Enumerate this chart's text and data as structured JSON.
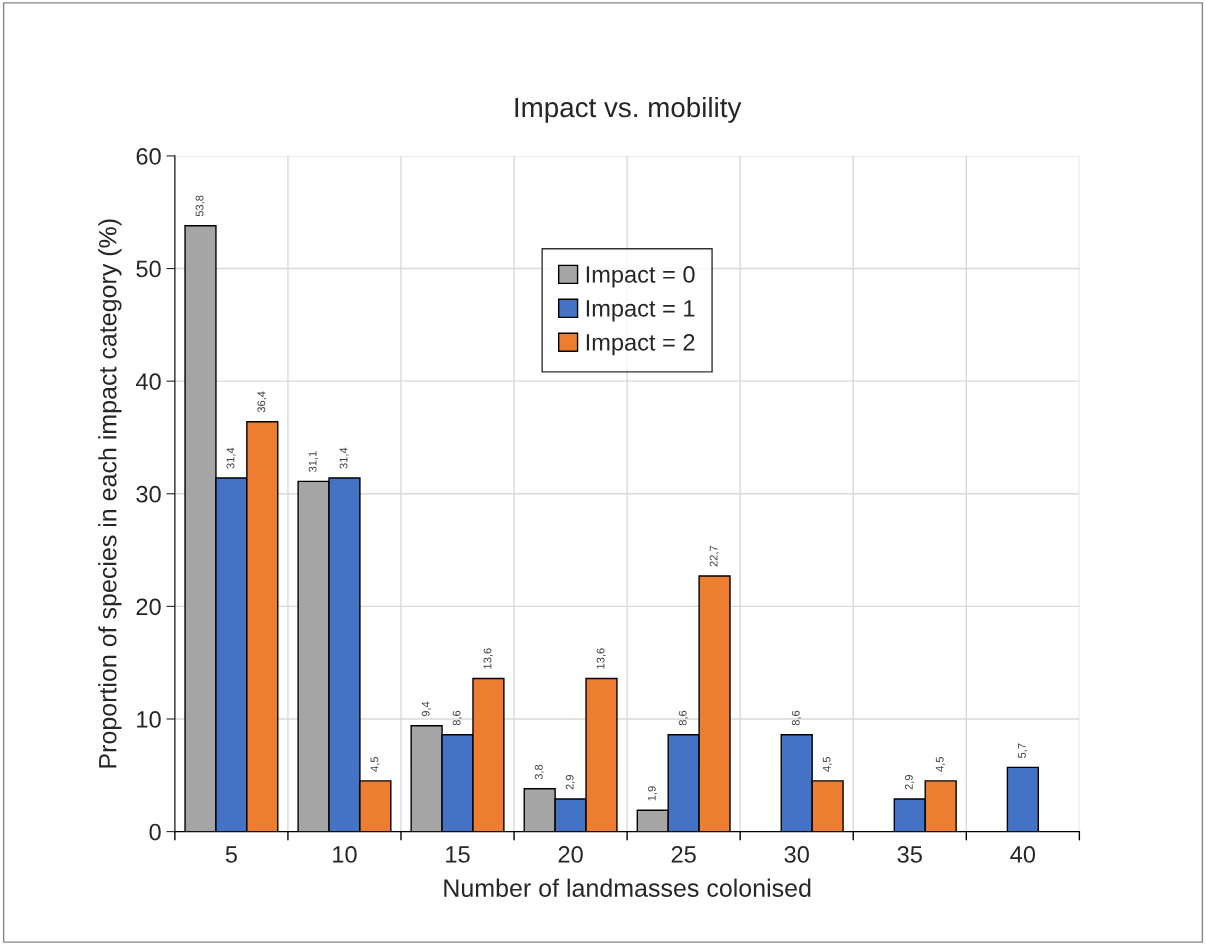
{
  "chart_data": {
    "type": "bar",
    "title": "Impact vs. mobility",
    "xlabel": "Number of landmasses colonised",
    "ylabel": "Proportion of species in each impact category (%)",
    "categories": [
      "5",
      "10",
      "15",
      "20",
      "25",
      "30",
      "35",
      "40"
    ],
    "series": [
      {
        "name": "Impact = 0",
        "color": "#a5a5a5",
        "values": [
          53.8,
          31.1,
          9.4,
          3.8,
          1.9,
          null,
          null,
          null
        ],
        "value_labels": [
          "53,8",
          "31,1",
          "9,4",
          "3,8",
          "1,9",
          null,
          null,
          null
        ]
      },
      {
        "name": "Impact = 1",
        "color": "#4472c4",
        "values": [
          31.4,
          31.4,
          8.6,
          2.9,
          8.6,
          8.6,
          2.9,
          5.7
        ],
        "value_labels": [
          "31,4",
          "31,4",
          "8,6",
          "2,9",
          "8,6",
          "8,6",
          "2,9",
          "5,7"
        ]
      },
      {
        "name": "Impact = 2",
        "color": "#ed7d31",
        "values": [
          36.4,
          4.5,
          13.6,
          13.6,
          22.7,
          4.5,
          4.5,
          null
        ],
        "value_labels": [
          "36,4",
          "4,5",
          "13,6",
          "13,6",
          "22,7",
          "4,5",
          "4,5",
          null
        ]
      }
    ],
    "ylim": [
      0,
      60
    ],
    "yticks": [
      0,
      10,
      20,
      30,
      40,
      50,
      60
    ],
    "grid": true,
    "legend": "top"
  }
}
